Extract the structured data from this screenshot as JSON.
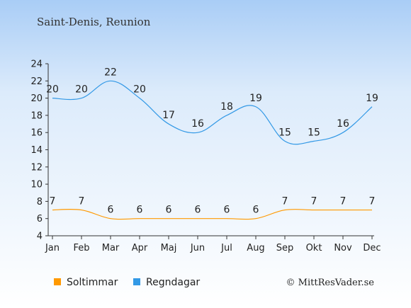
{
  "chart_data": {
    "type": "line",
    "title": "Saint-Denis, Reunion",
    "categories": [
      "Jan",
      "Feb",
      "Mar",
      "Apr",
      "Maj",
      "Jun",
      "Jul",
      "Aug",
      "Sep",
      "Okt",
      "Nov",
      "Dec"
    ],
    "ylim": [
      4,
      24
    ],
    "yticks": [
      4,
      6,
      8,
      10,
      12,
      14,
      16,
      18,
      20,
      22,
      24
    ],
    "grid": false,
    "legend_position": "bottom-left",
    "series": [
      {
        "name": "Regndagar",
        "color": "#3399e6",
        "values": [
          20,
          20,
          22,
          20,
          17,
          16,
          18,
          19,
          15,
          15,
          16,
          19
        ]
      },
      {
        "name": "Soltimmar",
        "color": "#ff9900",
        "values": [
          7,
          7,
          6,
          6,
          6,
          6,
          6,
          6,
          7,
          7,
          7,
          7
        ]
      }
    ],
    "legend": [
      {
        "name": "Soltimmar",
        "color": "#ff9900"
      },
      {
        "name": "Regndagar",
        "color": "#3399e6"
      }
    ],
    "credit": "© MittResVader.se"
  }
}
